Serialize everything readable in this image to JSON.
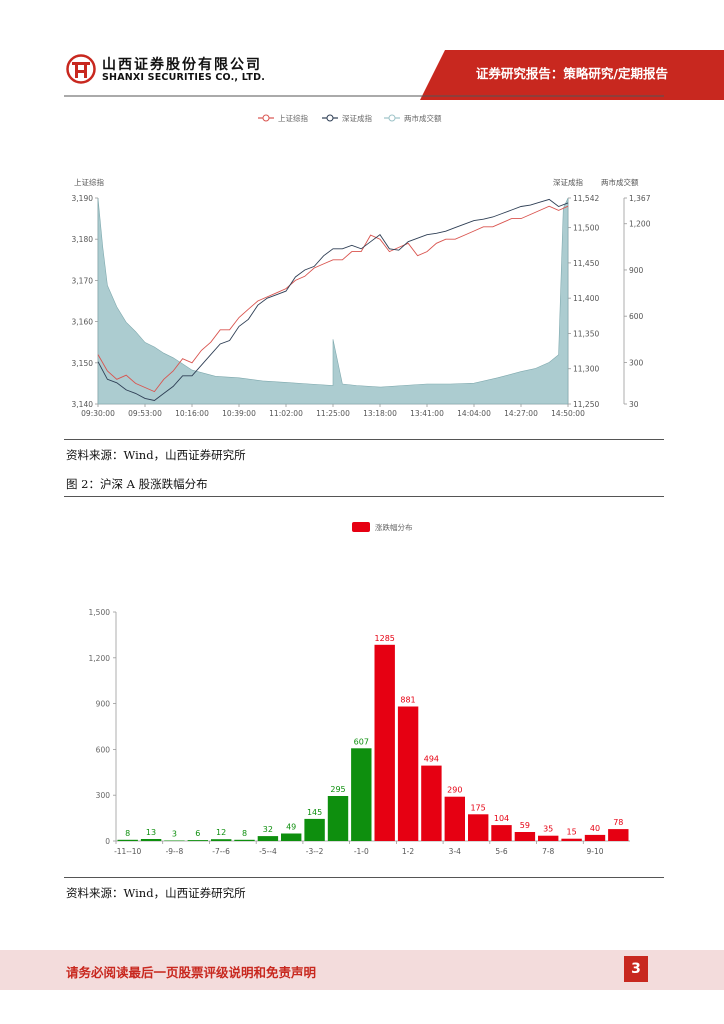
{
  "header": {
    "company_cn": "山西证券股份有限公司",
    "company_en": "SHANXI SECURITIES CO., LTD.",
    "report_type": "证券研究报告：策略研究/定期报告"
  },
  "figure1": {
    "source": "资料来源：Wind，山西证券研究所"
  },
  "figure2": {
    "caption": "图 2：沪深 A 股涨跌幅分布",
    "source": "资料来源：Wind，山西证券研究所"
  },
  "footer": {
    "disclaimer": "请务必阅读最后一页股票评级说明和免责声明",
    "page_number": "3"
  },
  "colors": {
    "brand_red": "#c8281f",
    "sh_line": "#d9544f",
    "sz_line": "#2f3f55",
    "volume_area": "#9dc3c8",
    "up_bar": "#e60012",
    "down_bar": "#0e8f0e"
  },
  "chart_data": [
    {
      "type": "line",
      "title": "",
      "legend": [
        "上证综指",
        "深证成指",
        "两市成交额"
      ],
      "legend_position": "top-center",
      "y_left_label": "上证综指",
      "y_right1_label": "深证成指",
      "y_right2_label": "两市成交额",
      "x_ticks": [
        "09:30:00",
        "09:53:00",
        "10:16:00",
        "10:39:00",
        "11:02:00",
        "11:25:00",
        "13:18:00",
        "13:41:00",
        "14:04:00",
        "14:27:00",
        "14:50:00"
      ],
      "y_left_ticks": [
        "3,140",
        "3,150",
        "3,160",
        "3,170",
        "3,180",
        "3,190"
      ],
      "y_left_range": [
        3140,
        3190
      ],
      "y_right1_ticks": [
        "11,250",
        "11,300",
        "11,350",
        "11,400",
        "11,450",
        "11,500",
        "11,542"
      ],
      "y_right1_range": [
        11250,
        11542
      ],
      "y_right2_ticks": [
        "30",
        "300",
        "600",
        "900",
        "1,200",
        "1,367"
      ],
      "y_right2_range": [
        30,
        1367
      ],
      "series": [
        {
          "name": "上证综指",
          "x": [
            0,
            0.02,
            0.04,
            0.06,
            0.08,
            0.1,
            0.12,
            0.14,
            0.16,
            0.18,
            0.2,
            0.22,
            0.24,
            0.26,
            0.28,
            0.3,
            0.32,
            0.34,
            0.36,
            0.38,
            0.4,
            0.42,
            0.44,
            0.46,
            0.48,
            0.5,
            0.52,
            0.54,
            0.56,
            0.58,
            0.6,
            0.62,
            0.64,
            0.66,
            0.68,
            0.7,
            0.72,
            0.74,
            0.76,
            0.78,
            0.8,
            0.82,
            0.84,
            0.86,
            0.88,
            0.9,
            0.92,
            0.94,
            0.96,
            0.98,
            1.0
          ],
          "values": [
            3152,
            3148,
            3146,
            3147,
            3145,
            3144,
            3143,
            3146,
            3148,
            3151,
            3150,
            3153,
            3155,
            3158,
            3158,
            3161,
            3163,
            3165,
            3166,
            3167,
            3168,
            3170,
            3171,
            3173,
            3174,
            3175,
            3175,
            3177,
            3177,
            3181,
            3180,
            3177,
            3178,
            3179,
            3176,
            3177,
            3179,
            3180,
            3180,
            3181,
            3182,
            3183,
            3183,
            3184,
            3185,
            3185,
            3186,
            3187,
            3188,
            3187,
            3188
          ]
        },
        {
          "name": "深证成指",
          "x": [
            0,
            0.02,
            0.04,
            0.06,
            0.08,
            0.1,
            0.12,
            0.14,
            0.16,
            0.18,
            0.2,
            0.22,
            0.24,
            0.26,
            0.28,
            0.3,
            0.32,
            0.34,
            0.36,
            0.38,
            0.4,
            0.42,
            0.44,
            0.46,
            0.48,
            0.5,
            0.52,
            0.54,
            0.56,
            0.58,
            0.6,
            0.62,
            0.64,
            0.66,
            0.68,
            0.7,
            0.72,
            0.74,
            0.76,
            0.78,
            0.8,
            0.82,
            0.84,
            0.86,
            0.88,
            0.9,
            0.92,
            0.94,
            0.96,
            0.98,
            1.0
          ],
          "values": [
            11310,
            11285,
            11280,
            11270,
            11265,
            11258,
            11255,
            11265,
            11275,
            11290,
            11290,
            11305,
            11320,
            11335,
            11340,
            11360,
            11370,
            11390,
            11400,
            11405,
            11410,
            11430,
            11440,
            11445,
            11460,
            11470,
            11470,
            11475,
            11470,
            11480,
            11490,
            11470,
            11468,
            11480,
            11485,
            11490,
            11492,
            11495,
            11500,
            11505,
            11510,
            11512,
            11515,
            11520,
            11525,
            11530,
            11532,
            11536,
            11540,
            11530,
            11535
          ]
        },
        {
          "name": "两市成交额",
          "x": [
            0,
            0.01,
            0.02,
            0.04,
            0.06,
            0.08,
            0.1,
            0.12,
            0.14,
            0.16,
            0.18,
            0.2,
            0.25,
            0.3,
            0.35,
            0.4,
            0.45,
            0.5,
            0.5,
            0.52,
            0.55,
            0.6,
            0.65,
            0.7,
            0.75,
            0.8,
            0.85,
            0.9,
            0.93,
            0.96,
            0.98,
            0.99,
            1.0
          ],
          "values": [
            1367,
            1050,
            800,
            660,
            560,
            500,
            430,
            400,
            360,
            330,
            290,
            250,
            210,
            200,
            180,
            170,
            160,
            150,
            450,
            160,
            150,
            140,
            150,
            160,
            160,
            165,
            200,
            240,
            260,
            300,
            350,
            1300,
            1367
          ]
        }
      ]
    },
    {
      "type": "bar",
      "title": "",
      "legend": [
        "涨跌幅分布"
      ],
      "legend_position": "top-center",
      "categories": [
        "-11--10",
        "-10--9",
        "-9--8",
        "-8--7",
        "-7--6",
        "-6--5",
        "-5--4",
        "-4--3",
        "-3--2",
        "-2--1",
        "-1-0",
        "0-1",
        "1-2",
        "2-3",
        "3-4",
        "4-5",
        "5-6",
        "6-7",
        "7-8",
        "8-9",
        "9-10",
        ">10"
      ],
      "x_tick_labels": [
        "-11--10",
        "-9--8",
        "-7--6",
        "-5--4",
        "-3--2",
        "-1-0",
        "1-2",
        "3-4",
        "5-6",
        "7-8",
        "9-10"
      ],
      "values": [
        8,
        13,
        3,
        6,
        12,
        8,
        32,
        49,
        145,
        295,
        607,
        1285,
        881,
        494,
        290,
        175,
        104,
        59,
        35,
        15,
        40,
        78
      ],
      "data_labels": [
        "8",
        "13",
        "3",
        "6",
        "12",
        "8",
        "32",
        "49",
        "145",
        "295",
        "607",
        "1285",
        "881",
        "494",
        "290",
        "175",
        "104",
        "59",
        "35",
        "15",
        "40",
        "78"
      ],
      "y_ticks": [
        "0",
        "300",
        "600",
        "900",
        "1,200",
        "1,500"
      ],
      "ylim": [
        0,
        1500
      ]
    }
  ]
}
